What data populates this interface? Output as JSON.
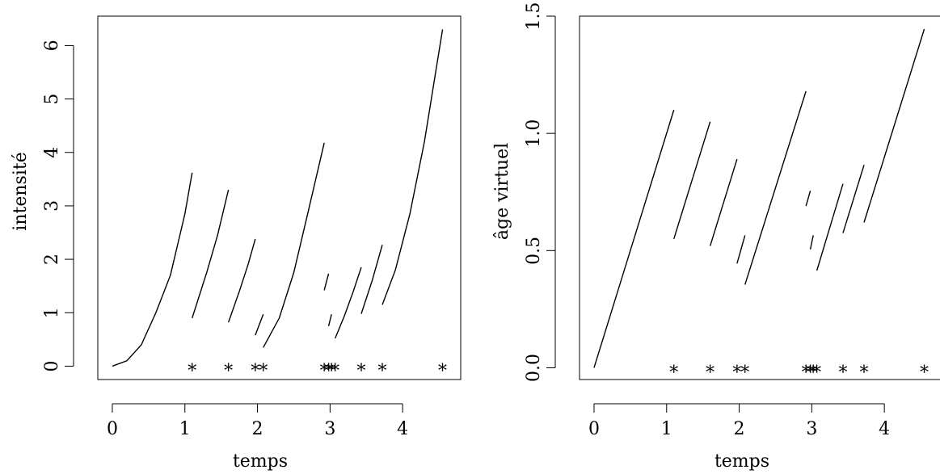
{
  "chart_data": [
    {
      "type": "line",
      "xlabel": "temps",
      "ylabel": "intensité",
      "xticks": [
        "0",
        "1",
        "2",
        "3",
        "4"
      ],
      "yticks": [
        "0",
        "1",
        "2",
        "3",
        "4",
        "5",
        "6"
      ],
      "xlim": [
        -0.2,
        4.8
      ],
      "ylim": [
        -0.25,
        6.55
      ],
      "event_marker": "*",
      "event_times": [
        1.1,
        1.6,
        1.97,
        2.08,
        2.92,
        2.98,
        3.02,
        3.07,
        3.43,
        3.72,
        4.55
      ],
      "series": [
        {
          "x": [
            0.0,
            0.2,
            0.4,
            0.6,
            0.8,
            1.0,
            1.1
          ],
          "y": [
            0.0,
            0.1,
            0.4,
            1.0,
            1.7,
            2.85,
            3.62
          ]
        },
        {
          "x": [
            1.1,
            1.3,
            1.45,
            1.6
          ],
          "y": [
            0.9,
            1.75,
            2.45,
            3.3
          ]
        },
        {
          "x": [
            1.6,
            1.75,
            1.87,
            1.97
          ],
          "y": [
            0.82,
            1.4,
            1.9,
            2.38
          ]
        },
        {
          "x": [
            1.97,
            2.02,
            2.08
          ],
          "y": [
            0.58,
            0.76,
            0.97
          ]
        },
        {
          "x": [
            2.08,
            2.3,
            2.5,
            2.7,
            2.92
          ],
          "y": [
            0.35,
            0.9,
            1.75,
            2.9,
            4.18
          ]
        },
        {
          "x": [
            2.92,
            2.95,
            2.98
          ],
          "y": [
            1.42,
            1.58,
            1.73
          ]
        },
        {
          "x": [
            2.98,
            3.02
          ],
          "y": [
            0.75,
            0.97
          ]
        },
        {
          "x": [
            3.07,
            3.2,
            3.32,
            3.43
          ],
          "y": [
            0.52,
            0.95,
            1.4,
            1.85
          ]
        },
        {
          "x": [
            3.43,
            3.58,
            3.72
          ],
          "y": [
            0.98,
            1.6,
            2.27
          ]
        },
        {
          "x": [
            3.72,
            3.9,
            4.1,
            4.3,
            4.55
          ],
          "y": [
            1.15,
            1.8,
            2.85,
            4.2,
            6.3
          ]
        }
      ]
    },
    {
      "type": "line",
      "xlabel": "temps",
      "ylabel": "âge virtuel",
      "xticks": [
        "0",
        "1",
        "2",
        "3",
        "4"
      ],
      "yticks": [
        "0.0",
        "0.5",
        "1.0",
        "1.5"
      ],
      "xlim": [
        -0.2,
        4.8
      ],
      "ylim": [
        -0.05,
        1.5
      ],
      "event_marker": "*",
      "event_times": [
        1.1,
        1.6,
        1.97,
        2.08,
        2.92,
        2.98,
        3.02,
        3.07,
        3.43,
        3.72,
        4.55
      ],
      "series": [
        {
          "x": [
            0.0,
            1.1
          ],
          "y": [
            0.0,
            1.1
          ]
        },
        {
          "x": [
            1.1,
            1.6
          ],
          "y": [
            0.55,
            1.05
          ]
        },
        {
          "x": [
            1.6,
            1.97
          ],
          "y": [
            0.52,
            0.89
          ]
        },
        {
          "x": [
            1.97,
            2.08
          ],
          "y": [
            0.445,
            0.565
          ]
        },
        {
          "x": [
            2.08,
            2.92
          ],
          "y": [
            0.355,
            1.18
          ]
        },
        {
          "x": [
            2.92,
            2.98
          ],
          "y": [
            0.69,
            0.755
          ]
        },
        {
          "x": [
            2.98,
            3.02
          ],
          "y": [
            0.505,
            0.565
          ]
        },
        {
          "x": [
            3.07,
            3.43
          ],
          "y": [
            0.415,
            0.785
          ]
        },
        {
          "x": [
            3.43,
            3.72
          ],
          "y": [
            0.575,
            0.865
          ]
        },
        {
          "x": [
            3.72,
            4.55
          ],
          "y": [
            0.62,
            1.445
          ]
        }
      ]
    }
  ]
}
